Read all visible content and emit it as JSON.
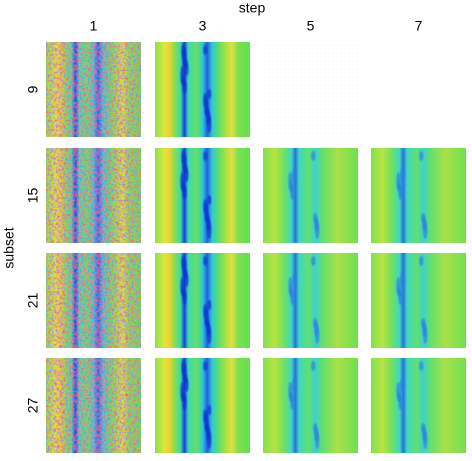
{
  "header": {
    "title": "step",
    "columns": [
      "1",
      "3",
      "5",
      "7"
    ]
  },
  "rows": {
    "title": "subset",
    "labels": [
      "9",
      "15",
      "21",
      "27"
    ]
  }
}
